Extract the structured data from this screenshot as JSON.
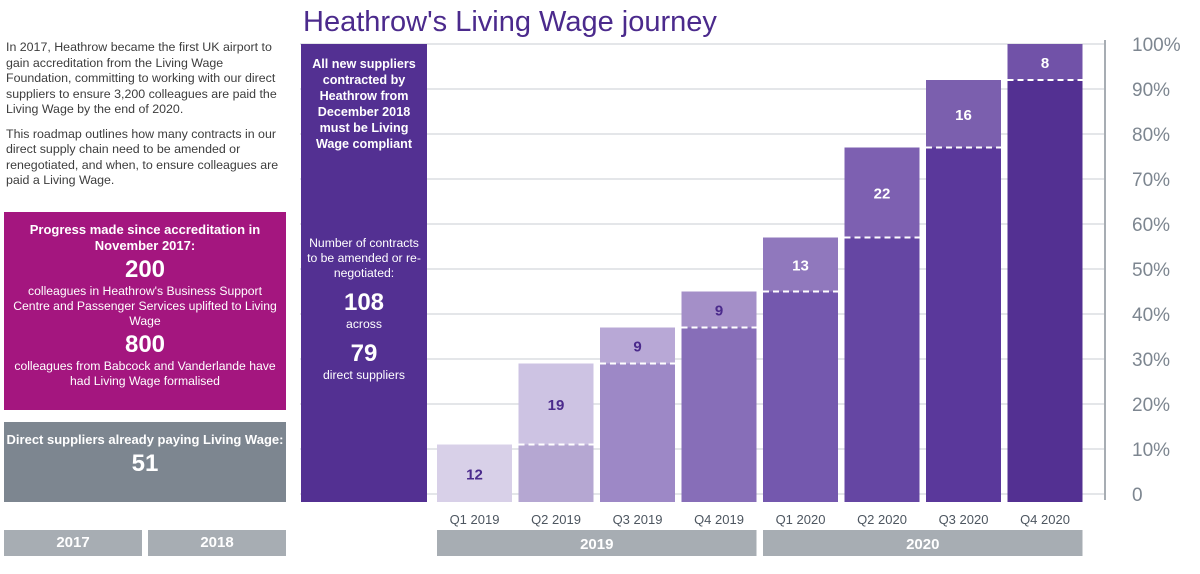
{
  "intro": {
    "paragraph1": "In 2017, Heathrow became the first UK airport to gain accreditation from the Living Wage Foundation, committing to working with our direct suppliers to ensure 3,200 colleagues are paid the Living Wage by the end of 2020.",
    "paragraph2": "This roadmap outlines how many contracts in our direct supply chain need to be amended or renegotiated, and when, to ensure colleagues are paid a Living Wage."
  },
  "progress": {
    "heading": "Progress made since accreditation in November 2017:",
    "stat1_value": "200",
    "stat1_text": "colleagues in Heathrow's Business Support Centre and Passenger Services uplifted to Living Wage",
    "stat2_value": "800",
    "stat2_text": "colleagues from Babcock and Vanderlande have had Living Wage formalised"
  },
  "direct": {
    "heading": "Direct suppliers already paying Living Wage:",
    "value": "51"
  },
  "left_years": [
    "2017",
    "2018"
  ],
  "left_column": {
    "note": "All new suppliers contracted by Heathrow from December 2018 must be Living Wage compliant",
    "contracts_label": "Number of contracts to be amended or re-negotiated:",
    "contracts_value": "108",
    "across": "across",
    "suppliers_value": "79",
    "suppliers_label": "direct suppliers"
  },
  "colors": {
    "magenta": "#a4167f",
    "grey": "#7d8690",
    "dark_purple": "#533092",
    "title": "#4b2a8c"
  },
  "chart_data": {
    "type": "bar",
    "title": "Heathrow's Living Wage journey",
    "categories": [
      "Q1 2019",
      "Q2 2019",
      "Q3 2019",
      "Q4 2019",
      "Q1 2020",
      "Q2 2020",
      "Q3 2020",
      "Q4 2020"
    ],
    "series": [
      {
        "values": [
          11,
          29,
          37,
          45,
          57,
          77,
          92,
          100
        ]
      }
    ],
    "increment_labels": [
      "12",
      "19",
      "9",
      "9",
      "13",
      "22",
      "16",
      "8"
    ],
    "previous_level": [
      0,
      11,
      29,
      37,
      45,
      57,
      77,
      92
    ],
    "year_groups": [
      {
        "label": "2019",
        "from": 0,
        "to": 3
      },
      {
        "label": "2020",
        "from": 4,
        "to": 7
      }
    ],
    "y_ticks": [
      "0",
      "10%",
      "20%",
      "30%",
      "40%",
      "50%",
      "60%",
      "70%",
      "80%",
      "90%",
      "100%"
    ],
    "ylim": [
      0,
      100
    ],
    "grid": true,
    "fill_colors": [
      "#d8d0e8",
      "#b5a7d2",
      "#9d88c6",
      "#876eb8",
      "#7458ae",
      "#6546a3",
      "#5a389b",
      "#533092"
    ],
    "increment_colors": [
      "#d8d0e8",
      "#cdc3e3",
      "#b8a8d6",
      "#a48fc8",
      "#9078bd",
      "#7d60b1",
      "#7b5fae",
      "#7152a8"
    ]
  }
}
